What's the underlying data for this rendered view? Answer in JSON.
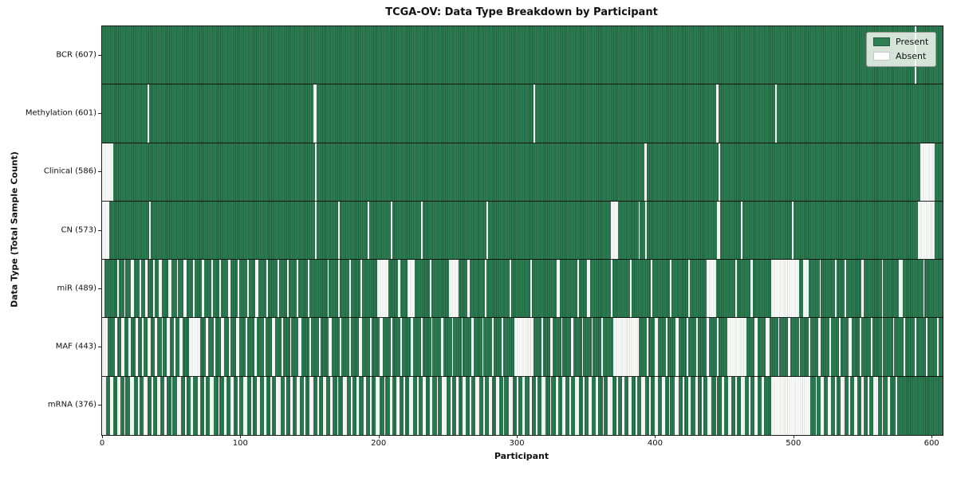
{
  "figure": {
    "title": "TCGA-OV: Data Type Breakdown by Participant",
    "xlabel": "Participant",
    "ylabel": "Data Type (Total Sample Count)"
  },
  "legend": {
    "present_label": "Present",
    "absent_label": "Absent",
    "position": "upper right"
  },
  "colors": {
    "present": "#2e8054",
    "present_edge": "#1e5c3b",
    "absent": "#ffffff",
    "absent_edge": "#d7dcd4",
    "axis": "#1a1a1a",
    "legend_bg": "#e9ede6"
  },
  "chart_data": {
    "type": "heatmap",
    "title": "TCGA-OV: Data Type Breakdown by Participant",
    "xlabel": "Participant",
    "ylabel": "Data Type (Total Sample Count)",
    "x_ticks": [
      0,
      100,
      200,
      300,
      400,
      500,
      600
    ],
    "xlim": [
      0,
      608
    ],
    "n_participants": 608,
    "grid": false,
    "legend_entries": [
      "Present",
      "Absent"
    ],
    "legend_position": "upper right",
    "rows": [
      {
        "label": "BCR (607)",
        "data_type": "BCR",
        "present_count": 607,
        "absent_count": 1,
        "absent_ranges": [
          [
            588,
            589
          ]
        ]
      },
      {
        "label": "Methylation (601)",
        "data_type": "Methylation",
        "present_count": 601,
        "absent_count": 7,
        "absent_ranges": [
          [
            33,
            34
          ],
          [
            153,
            155
          ],
          [
            312,
            313
          ],
          [
            444,
            446
          ],
          [
            487,
            488
          ]
        ]
      },
      {
        "label": "Clinical (586)",
        "data_type": "Clinical",
        "present_count": 586,
        "absent_count": 22,
        "absent_ranges": [
          [
            0,
            8
          ],
          [
            154,
            155
          ],
          [
            392,
            394
          ],
          [
            446,
            447
          ],
          [
            592,
            602
          ]
        ]
      },
      {
        "label": "CN (573)",
        "data_type": "CN",
        "present_count": 573,
        "absent_count": 35,
        "absent_ranges": [
          [
            0,
            5
          ],
          [
            34,
            35
          ],
          [
            154,
            155
          ],
          [
            171,
            172
          ],
          [
            192,
            193
          ],
          [
            209,
            210
          ],
          [
            231,
            232
          ],
          [
            278,
            279
          ],
          [
            368,
            373
          ],
          [
            388,
            389
          ],
          [
            393,
            394
          ],
          [
            445,
            447
          ],
          [
            462,
            463
          ],
          [
            499,
            500
          ],
          [
            590,
            602
          ]
        ]
      },
      {
        "label": "miR (489)",
        "data_type": "miR",
        "present_count": 489,
        "absent_count": 119,
        "absent_ranges": [
          [
            0,
            2
          ],
          [
            11,
            12
          ],
          [
            16,
            17
          ],
          [
            21,
            23
          ],
          [
            27,
            28
          ],
          [
            31,
            33
          ],
          [
            37,
            38
          ],
          [
            41,
            43
          ],
          [
            48,
            50
          ],
          [
            54,
            55
          ],
          [
            59,
            61
          ],
          [
            66,
            67
          ],
          [
            72,
            74
          ],
          [
            79,
            80
          ],
          [
            85,
            86
          ],
          [
            91,
            93
          ],
          [
            98,
            99
          ],
          [
            105,
            106
          ],
          [
            111,
            113
          ],
          [
            119,
            120
          ],
          [
            127,
            128
          ],
          [
            134,
            135
          ],
          [
            141,
            142
          ],
          [
            149,
            150
          ],
          [
            163,
            164
          ],
          [
            171,
            172
          ],
          [
            179,
            180
          ],
          [
            187,
            188
          ],
          [
            199,
            207
          ],
          [
            214,
            216
          ],
          [
            221,
            226
          ],
          [
            237,
            238
          ],
          [
            251,
            258
          ],
          [
            264,
            266
          ],
          [
            277,
            278
          ],
          [
            295,
            296
          ],
          [
            310,
            311
          ],
          [
            329,
            331
          ],
          [
            344,
            345
          ],
          [
            351,
            353
          ],
          [
            368,
            369
          ],
          [
            382,
            383
          ],
          [
            397,
            398
          ],
          [
            411,
            412
          ],
          [
            424,
            425
          ],
          [
            437,
            444
          ],
          [
            458,
            459
          ],
          [
            469,
            471
          ],
          [
            484,
            504
          ],
          [
            507,
            511
          ],
          [
            519,
            520
          ],
          [
            530,
            531
          ],
          [
            537,
            538
          ],
          [
            549,
            551
          ],
          [
            564,
            565
          ],
          [
            576,
            579
          ],
          [
            594,
            595
          ]
        ]
      },
      {
        "label": "MAF (443)",
        "data_type": "MAF",
        "present_count": 443,
        "absent_count": 165,
        "absent_ranges": [
          [
            0,
            4
          ],
          [
            9,
            11
          ],
          [
            14,
            16
          ],
          [
            19,
            21
          ],
          [
            24,
            26
          ],
          [
            29,
            30
          ],
          [
            33,
            35
          ],
          [
            38,
            40
          ],
          [
            43,
            44
          ],
          [
            47,
            49
          ],
          [
            52,
            53
          ],
          [
            56,
            58
          ],
          [
            63,
            71
          ],
          [
            75,
            77
          ],
          [
            81,
            82
          ],
          [
            86,
            88
          ],
          [
            92,
            93
          ],
          [
            97,
            99
          ],
          [
            104,
            105
          ],
          [
            110,
            112
          ],
          [
            117,
            118
          ],
          [
            123,
            125
          ],
          [
            130,
            131
          ],
          [
            136,
            137
          ],
          [
            142,
            144
          ],
          [
            150,
            151
          ],
          [
            157,
            158
          ],
          [
            164,
            166
          ],
          [
            172,
            173
          ],
          [
            179,
            180
          ],
          [
            186,
            188
          ],
          [
            194,
            195
          ],
          [
            201,
            203
          ],
          [
            209,
            210
          ],
          [
            216,
            217
          ],
          [
            223,
            225
          ],
          [
            231,
            232
          ],
          [
            238,
            239
          ],
          [
            245,
            247
          ],
          [
            253,
            254
          ],
          [
            260,
            261
          ],
          [
            267,
            269
          ],
          [
            275,
            276
          ],
          [
            282,
            283
          ],
          [
            289,
            290
          ],
          [
            298,
            312
          ],
          [
            318,
            319
          ],
          [
            324,
            326
          ],
          [
            332,
            333
          ],
          [
            339,
            341
          ],
          [
            347,
            348
          ],
          [
            354,
            355
          ],
          [
            361,
            362
          ],
          [
            370,
            388
          ],
          [
            394,
            395
          ],
          [
            400,
            402
          ],
          [
            408,
            409
          ],
          [
            415,
            417
          ],
          [
            423,
            424
          ],
          [
            430,
            431
          ],
          [
            437,
            439
          ],
          [
            445,
            446
          ],
          [
            452,
            466
          ],
          [
            472,
            474
          ],
          [
            480,
            483
          ],
          [
            489,
            490
          ],
          [
            496,
            498
          ],
          [
            504,
            505
          ],
          [
            511,
            512
          ],
          [
            518,
            520
          ],
          [
            526,
            527
          ],
          [
            533,
            534
          ],
          [
            540,
            542
          ],
          [
            548,
            549
          ],
          [
            556,
            557
          ],
          [
            564,
            565
          ],
          [
            572,
            573
          ],
          [
            580,
            581
          ],
          [
            588,
            589
          ],
          [
            596,
            597
          ],
          [
            604,
            605
          ]
        ]
      },
      {
        "label": "mRNA (376)",
        "data_type": "mRNA",
        "present_count": 376,
        "absent_count": 232,
        "absent_ranges": [
          [
            0,
            3
          ],
          [
            6,
            8
          ],
          [
            11,
            13
          ],
          [
            16,
            17
          ],
          [
            20,
            23
          ],
          [
            26,
            27
          ],
          [
            30,
            33
          ],
          [
            36,
            37
          ],
          [
            40,
            42
          ],
          [
            45,
            47
          ],
          [
            50,
            51
          ],
          [
            54,
            57
          ],
          [
            60,
            61
          ],
          [
            64,
            66
          ],
          [
            69,
            71
          ],
          [
            74,
            75
          ],
          [
            78,
            81
          ],
          [
            84,
            85
          ],
          [
            88,
            90
          ],
          [
            93,
            95
          ],
          [
            98,
            99
          ],
          [
            102,
            105
          ],
          [
            108,
            109
          ],
          [
            112,
            114
          ],
          [
            117,
            119
          ],
          [
            122,
            123
          ],
          [
            126,
            129
          ],
          [
            132,
            133
          ],
          [
            136,
            138
          ],
          [
            141,
            143
          ],
          [
            146,
            147
          ],
          [
            150,
            153
          ],
          [
            156,
            157
          ],
          [
            160,
            162
          ],
          [
            165,
            167
          ],
          [
            170,
            171
          ],
          [
            174,
            177
          ],
          [
            180,
            181
          ],
          [
            184,
            186
          ],
          [
            189,
            191
          ],
          [
            194,
            195
          ],
          [
            198,
            201
          ],
          [
            204,
            205
          ],
          [
            208,
            210
          ],
          [
            213,
            215
          ],
          [
            218,
            219
          ],
          [
            222,
            225
          ],
          [
            228,
            229
          ],
          [
            232,
            234
          ],
          [
            237,
            239
          ],
          [
            242,
            243
          ],
          [
            246,
            249
          ],
          [
            252,
            253
          ],
          [
            256,
            258
          ],
          [
            261,
            263
          ],
          [
            266,
            267
          ],
          [
            270,
            273
          ],
          [
            276,
            277
          ],
          [
            280,
            282
          ],
          [
            285,
            287
          ],
          [
            290,
            291
          ],
          [
            294,
            297
          ],
          [
            300,
            301
          ],
          [
            304,
            306
          ],
          [
            309,
            311
          ],
          [
            314,
            315
          ],
          [
            318,
            321
          ],
          [
            324,
            325
          ],
          [
            328,
            330
          ],
          [
            333,
            335
          ],
          [
            338,
            339
          ],
          [
            342,
            345
          ],
          [
            348,
            349
          ],
          [
            352,
            354
          ],
          [
            357,
            359
          ],
          [
            362,
            363
          ],
          [
            366,
            369
          ],
          [
            372,
            373
          ],
          [
            376,
            378
          ],
          [
            381,
            383
          ],
          [
            386,
            387
          ],
          [
            390,
            393
          ],
          [
            396,
            397
          ],
          [
            400,
            402
          ],
          [
            405,
            407
          ],
          [
            410,
            411
          ],
          [
            414,
            417
          ],
          [
            420,
            421
          ],
          [
            424,
            426
          ],
          [
            429,
            431
          ],
          [
            434,
            435
          ],
          [
            438,
            441
          ],
          [
            444,
            445
          ],
          [
            448,
            450
          ],
          [
            453,
            455
          ],
          [
            458,
            459
          ],
          [
            462,
            465
          ],
          [
            468,
            469
          ],
          [
            472,
            474
          ],
          [
            477,
            479
          ],
          [
            484,
            512
          ],
          [
            516,
            517
          ],
          [
            520,
            522
          ],
          [
            525,
            527
          ],
          [
            530,
            531
          ],
          [
            534,
            537
          ],
          [
            540,
            541
          ],
          [
            544,
            546
          ],
          [
            549,
            551
          ],
          [
            554,
            555
          ],
          [
            558,
            561
          ],
          [
            564,
            565
          ],
          [
            568,
            570
          ],
          [
            574,
            575
          ]
        ]
      }
    ]
  }
}
